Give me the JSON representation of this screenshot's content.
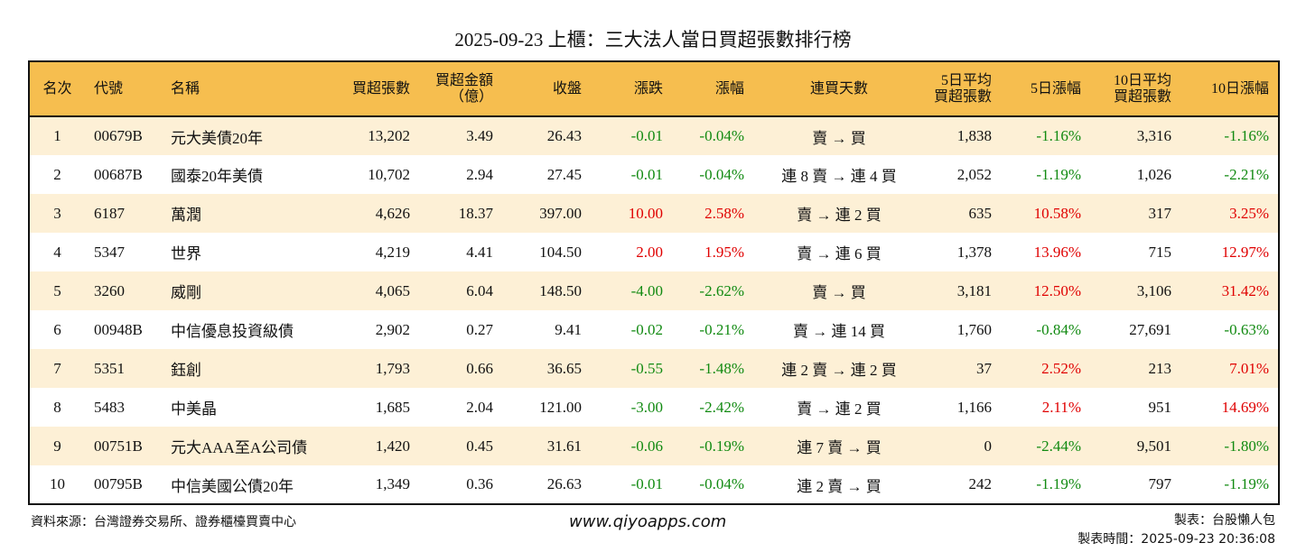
{
  "title": "2025-09-23 上櫃：三大法人當日買超張數排行榜",
  "headers": {
    "rank": "名次",
    "code": "代號",
    "name": "名稱",
    "net_shares": "買超張數",
    "net_amount_1": "買超金額",
    "net_amount_2": "（億）",
    "close": "收盤",
    "change": "漲跌",
    "pct": "漲幅",
    "streak": "連買天數",
    "avg5_1": "5日平均",
    "avg5_2": "買超張數",
    "pct5": "5日漲幅",
    "avg10_1": "10日平均",
    "avg10_2": "買超張數",
    "pct10": "10日漲幅"
  },
  "rows": [
    {
      "rank": "1",
      "code": "00679B",
      "name": "元大美債20年",
      "net_shares": "13,202",
      "net_amount": "3.49",
      "close": "26.43",
      "change": "-0.01",
      "pct": "-0.04%",
      "streak": "賣 → 買",
      "avg5": "1,838",
      "pct5": "-1.16%",
      "avg10": "3,316",
      "pct10": "-1.16%"
    },
    {
      "rank": "2",
      "code": "00687B",
      "name": "國泰20年美債",
      "net_shares": "10,702",
      "net_amount": "2.94",
      "close": "27.45",
      "change": "-0.01",
      "pct": "-0.04%",
      "streak": "連 8 賣 → 連 4 買",
      "avg5": "2,052",
      "pct5": "-1.19%",
      "avg10": "1,026",
      "pct10": "-2.21%"
    },
    {
      "rank": "3",
      "code": "6187",
      "name": "萬潤",
      "net_shares": "4,626",
      "net_amount": "18.37",
      "close": "397.00",
      "change": "10.00",
      "pct": "2.58%",
      "streak": "賣 → 連 2 買",
      "avg5": "635",
      "pct5": "10.58%",
      "avg10": "317",
      "pct10": "3.25%"
    },
    {
      "rank": "4",
      "code": "5347",
      "name": "世界",
      "net_shares": "4,219",
      "net_amount": "4.41",
      "close": "104.50",
      "change": "2.00",
      "pct": "1.95%",
      "streak": "賣 → 連 6 買",
      "avg5": "1,378",
      "pct5": "13.96%",
      "avg10": "715",
      "pct10": "12.97%"
    },
    {
      "rank": "5",
      "code": "3260",
      "name": "威剛",
      "net_shares": "4,065",
      "net_amount": "6.04",
      "close": "148.50",
      "change": "-4.00",
      "pct": "-2.62%",
      "streak": "賣 → 買",
      "avg5": "3,181",
      "pct5": "12.50%",
      "avg10": "3,106",
      "pct10": "31.42%"
    },
    {
      "rank": "6",
      "code": "00948B",
      "name": "中信優息投資級債",
      "net_shares": "2,902",
      "net_amount": "0.27",
      "close": "9.41",
      "change": "-0.02",
      "pct": "-0.21%",
      "streak": "賣 → 連 14 買",
      "avg5": "1,760",
      "pct5": "-0.84%",
      "avg10": "27,691",
      "pct10": "-0.63%"
    },
    {
      "rank": "7",
      "code": "5351",
      "name": "鈺創",
      "net_shares": "1,793",
      "net_amount": "0.66",
      "close": "36.65",
      "change": "-0.55",
      "pct": "-1.48%",
      "streak": "連 2 賣 → 連 2 買",
      "avg5": "37",
      "pct5": "2.52%",
      "avg10": "213",
      "pct10": "7.01%"
    },
    {
      "rank": "8",
      "code": "5483",
      "name": "中美晶",
      "net_shares": "1,685",
      "net_amount": "2.04",
      "close": "121.00",
      "change": "-3.00",
      "pct": "-2.42%",
      "streak": "賣 → 連 2 買",
      "avg5": "1,166",
      "pct5": "2.11%",
      "avg10": "951",
      "pct10": "14.69%"
    },
    {
      "rank": "9",
      "code": "00751B",
      "name": "元大AAA至A公司債",
      "net_shares": "1,420",
      "net_amount": "0.45",
      "close": "31.61",
      "change": "-0.06",
      "pct": "-0.19%",
      "streak": "連 7 賣 → 買",
      "avg5": "0",
      "pct5": "-2.44%",
      "avg10": "9,501",
      "pct10": "-1.80%"
    },
    {
      "rank": "10",
      "code": "00795B",
      "name": "中信美國公債20年",
      "net_shares": "1,349",
      "net_amount": "0.36",
      "close": "26.63",
      "change": "-0.01",
      "pct": "-0.04%",
      "streak": "連 2 賣 → 買",
      "avg5": "242",
      "pct5": "-1.19%",
      "avg10": "797",
      "pct10": "-1.19%"
    }
  ],
  "footer": {
    "source": "資料來源：台灣證券交易所、證券櫃檯買賣中心",
    "website": "www.qiyoapps.com",
    "author": "製表：台股懶人包",
    "time": "製表時間：2025-09-23 20:36:08"
  },
  "colors": {
    "header_bg": "#F6BE4F",
    "stripe_bg": "#FDF0D6",
    "up": "#E00000",
    "down": "#118A11"
  }
}
